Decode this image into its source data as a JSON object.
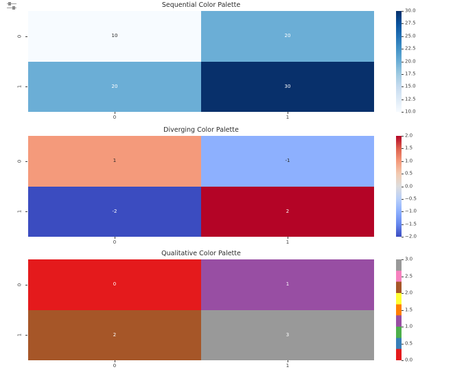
{
  "icon": {
    "name": "output-adjust-icon"
  },
  "chart_data": [
    {
      "type": "heatmap",
      "title": "Sequential Color Palette",
      "palette": "Blues",
      "x_ticklabels": [
        "0",
        "1"
      ],
      "y_ticklabels": [
        "0",
        "1"
      ],
      "values": [
        [
          10,
          20
        ],
        [
          20,
          30
        ]
      ],
      "annotations": [
        [
          "10",
          "20"
        ],
        [
          "20",
          "30"
        ]
      ],
      "cell_colors": [
        [
          "#f7fbff",
          "#6baed6"
        ],
        [
          "#6baed6",
          "#08306b"
        ]
      ],
      "text_colors": [
        [
          "#262626",
          "#ffffff"
        ],
        [
          "#ffffff",
          "#ffffff"
        ]
      ],
      "colorbar": {
        "vmin": 10,
        "vmax": 30,
        "discrete": false,
        "gradient": [
          "#f7fbff",
          "#deebf7",
          "#c6dbef",
          "#9ecae1",
          "#6baed6",
          "#4292c6",
          "#2171b5",
          "#08519c",
          "#08306b"
        ],
        "ticks": [
          {
            "value": 10,
            "label": "10.0"
          },
          {
            "value": 12.5,
            "label": "12.5"
          },
          {
            "value": 15,
            "label": "15.0"
          },
          {
            "value": 17.5,
            "label": "17.5"
          },
          {
            "value": 20,
            "label": "20.0"
          },
          {
            "value": 22.5,
            "label": "22.5"
          },
          {
            "value": 25,
            "label": "25.0"
          },
          {
            "value": 27.5,
            "label": "27.5"
          },
          {
            "value": 30,
            "label": "30.0"
          }
        ]
      }
    },
    {
      "type": "heatmap",
      "title": "Diverging Color Palette",
      "palette": "coolwarm",
      "x_ticklabels": [
        "0",
        "1"
      ],
      "y_ticklabels": [
        "0",
        "1"
      ],
      "values": [
        [
          1,
          -1
        ],
        [
          -2,
          2
        ]
      ],
      "annotations": [
        [
          "1",
          "-1"
        ],
        [
          "-2",
          "2"
        ]
      ],
      "cell_colors": [
        [
          "#f49a7b",
          "#8db0fe"
        ],
        [
          "#3b4cc0",
          "#b40426"
        ]
      ],
      "text_colors": [
        [
          "#262626",
          "#262626"
        ],
        [
          "#ffffff",
          "#ffffff"
        ]
      ],
      "colorbar": {
        "vmin": -2,
        "vmax": 2,
        "discrete": false,
        "gradient": [
          "#3b4cc0",
          "#6688ee",
          "#8db0fe",
          "#b8cff9",
          "#dddddd",
          "#f2cab1",
          "#f49a7b",
          "#dd604d",
          "#b40426"
        ],
        "ticks": [
          {
            "value": -2,
            "label": "−2.0"
          },
          {
            "value": -1.5,
            "label": "−1.5"
          },
          {
            "value": -1,
            "label": "−1.0"
          },
          {
            "value": -0.5,
            "label": "−0.5"
          },
          {
            "value": 0,
            "label": "0.0"
          },
          {
            "value": 0.5,
            "label": "0.5"
          },
          {
            "value": 1,
            "label": "1.0"
          },
          {
            "value": 1.5,
            "label": "1.5"
          },
          {
            "value": 2,
            "label": "2.0"
          }
        ]
      }
    },
    {
      "type": "heatmap",
      "title": "Qualitative Color Palette",
      "palette": "Set1",
      "x_ticklabels": [
        "0",
        "1"
      ],
      "y_ticklabels": [
        "0",
        "1"
      ],
      "values": [
        [
          0,
          1
        ],
        [
          2,
          3
        ]
      ],
      "annotations": [
        [
          "0",
          "1"
        ],
        [
          "2",
          "3"
        ]
      ],
      "cell_colors": [
        [
          "#e41a1c",
          "#984ea3"
        ],
        [
          "#a65628",
          "#999999"
        ]
      ],
      "text_colors": [
        [
          "#ffffff",
          "#ffffff"
        ],
        [
          "#ffffff",
          "#ffffff"
        ]
      ],
      "colorbar": {
        "vmin": 0,
        "vmax": 3,
        "discrete": true,
        "gradient": [
          "#e41a1c",
          "#377eb8",
          "#4daf4a",
          "#984ea3",
          "#ff7f00",
          "#ffff33",
          "#a65628",
          "#f781bf",
          "#999999"
        ],
        "ticks": [
          {
            "value": 0,
            "label": "0.0"
          },
          {
            "value": 0.5,
            "label": "0.5"
          },
          {
            "value": 1,
            "label": "1.0"
          },
          {
            "value": 1.5,
            "label": "1.5"
          },
          {
            "value": 2,
            "label": "2.0"
          },
          {
            "value": 2.5,
            "label": "2.5"
          },
          {
            "value": 3,
            "label": "3.0"
          }
        ]
      }
    }
  ]
}
